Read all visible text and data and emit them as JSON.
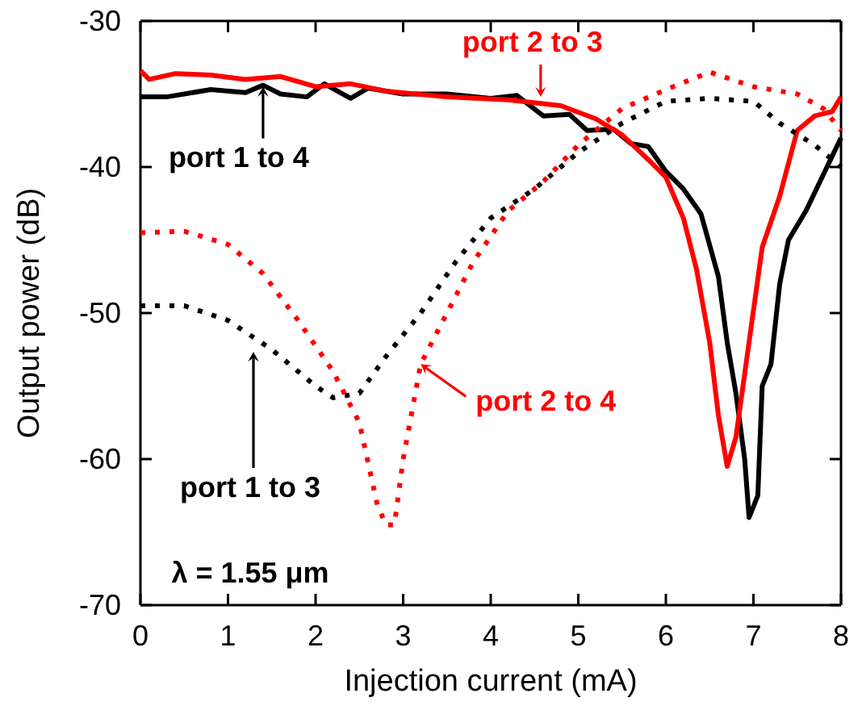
{
  "chart_data": {
    "type": "line",
    "xlabel": "Injection current (mA)",
    "ylabel": "Output power (dB)",
    "xlim": [
      0,
      8
    ],
    "xticks": [
      0,
      1,
      2,
      3,
      4,
      5,
      6,
      7,
      8
    ],
    "ylim": [
      -70,
      -30
    ],
    "yticks": [
      -70,
      -60,
      -50,
      -40,
      -30
    ],
    "grid": false,
    "marker": "none",
    "annotations": [
      {
        "text": "port 1 to 4",
        "x": 1.4,
        "y": -34.5
      },
      {
        "text": "port 2 to 3",
        "x": 4.57,
        "y": -35.2
      },
      "port 1 to 3",
      {
        "text": "port 2 to 4",
        "x": 3.2,
        "y": -53.5
      },
      "λ = 1.55 μm"
    ],
    "series": [
      {
        "color": "#000000",
        "line_style": "solid",
        "x": [
          0,
          0.3,
          0.8,
          1.2,
          1.4,
          1.6,
          1.9,
          2.1,
          2.4,
          2.6,
          3,
          3.5,
          4,
          4.3,
          4.6,
          4.9,
          5.1,
          5.4,
          5.6,
          5.8,
          6,
          6.2,
          6.4,
          6.6,
          6.7,
          6.8,
          6.9,
          6.95,
          7.05,
          7.1,
          7.2,
          7.3,
          7.4,
          7.6,
          7.8,
          8
        ],
        "values": [
          -35.2,
          -35.2,
          -34.7,
          -34.9,
          -34.4,
          -35,
          -35.2,
          -34.3,
          -35.3,
          -34.6,
          -35,
          -35,
          -35.3,
          -35.1,
          -36.5,
          -36.4,
          -37.5,
          -37.4,
          -38.4,
          -38.6,
          -40.3,
          -41.5,
          -43.2,
          -47.5,
          -52,
          -55.5,
          -60,
          -64,
          -62.5,
          -55,
          -53.5,
          -48,
          -45,
          -43,
          -40.5,
          -38
        ]
      },
      {
        "color": "#ff0000",
        "line_style": "solid",
        "x": [
          0,
          0.1,
          0.4,
          0.8,
          1.2,
          1.6,
          2,
          2.4,
          2.8,
          3.5,
          4.2,
          4.8,
          5.2,
          5.5,
          5.8,
          6,
          6.2,
          6.35,
          6.5,
          6.6,
          6.7,
          6.8,
          6.95,
          7.1,
          7.3,
          7.5,
          7.7,
          7.9,
          8
        ],
        "values": [
          -33.4,
          -34,
          -33.6,
          -33.7,
          -34,
          -33.8,
          -34.5,
          -34.3,
          -34.8,
          -35.2,
          -35.4,
          -35.8,
          -36.7,
          -37.8,
          -39.5,
          -40.7,
          -43.5,
          -47,
          -52,
          -57,
          -60.5,
          -58.5,
          -52,
          -45.5,
          -42,
          -37.5,
          -36.5,
          -36.2,
          -35.2
        ]
      },
      {
        "color": "#000000",
        "line_style": "dotted",
        "x": [
          0,
          0.5,
          1,
          1.5,
          2,
          2.2,
          2.5,
          2.8,
          3.2,
          3.6,
          4,
          4.5,
          5,
          5.5,
          6,
          6.5,
          7,
          7.3,
          7.7,
          8
        ],
        "values": [
          -49.5,
          -49.5,
          -50.5,
          -52.5,
          -55,
          -55.8,
          -55.5,
          -53,
          -50,
          -46.5,
          -43.5,
          -41.5,
          -39,
          -37,
          -35.5,
          -35.3,
          -35.5,
          -37,
          -38.5,
          -40
        ]
      },
      {
        "color": "#ff0000",
        "line_style": "dotted",
        "x": [
          0,
          0.5,
          1,
          1.4,
          1.8,
          2.2,
          2.5,
          2.7,
          2.8,
          2.9,
          3,
          3.2,
          3.5,
          3.8,
          4.2,
          4.6,
          5,
          5.5,
          6,
          6.5,
          7,
          7.5,
          7.8,
          8
        ],
        "values": [
          -44.5,
          -44.4,
          -45.3,
          -47.3,
          -50.5,
          -54,
          -57.5,
          -63,
          -64.5,
          -64.5,
          -60,
          -53.5,
          -50,
          -46.5,
          -43,
          -41,
          -38.5,
          -36,
          -34.7,
          -33.5,
          -34.5,
          -35,
          -36,
          -37.5
        ]
      }
    ]
  }
}
